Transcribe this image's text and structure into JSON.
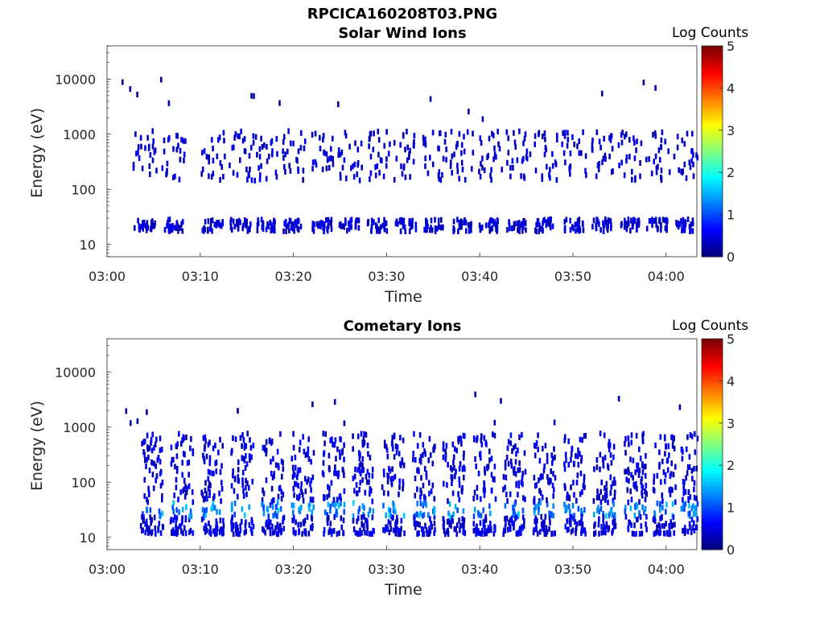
{
  "figure": {
    "title": "RPCICA160208T03.PNG"
  },
  "panels": [
    {
      "id": "solar",
      "title": "Solar Wind Ions",
      "colorbar_label": "Log Counts",
      "colorbar_ticks": [
        "0",
        "1",
        "2",
        "3",
        "4",
        "5"
      ],
      "xlabel": "Time",
      "ylabel": "Energy (eV)",
      "xticks": [
        "03:00",
        "03:10",
        "03:20",
        "03:30",
        "03:40",
        "03:50",
        "04:00"
      ],
      "yticks": [
        "10",
        "100",
        "1000",
        "10000"
      ]
    },
    {
      "id": "cometary",
      "title": "Cometary Ions",
      "colorbar_label": "Log Counts",
      "colorbar_ticks": [
        "0",
        "1",
        "2",
        "3",
        "4",
        "5"
      ],
      "xlabel": "Time",
      "ylabel": "Energy (eV)",
      "xticks": [
        "03:00",
        "03:10",
        "03:20",
        "03:30",
        "03:40",
        "03:50",
        "04:00"
      ],
      "yticks": [
        "10",
        "100",
        "1000",
        "10000"
      ]
    }
  ],
  "chart_data": [
    {
      "type": "heatmap",
      "title": "Solar Wind Ions",
      "xlabel": "Time",
      "ylabel": "Energy (eV)",
      "x_range": [
        "03:00",
        "04:03"
      ],
      "y_range_eV": [
        6,
        40000
      ],
      "y_scale": "log",
      "colorbar": {
        "label": "Log Counts",
        "range": [
          0,
          5
        ],
        "colormap": "jet"
      },
      "description_values": {
        "scan_times_min": [
          3.5,
          6.5,
          10.8,
          13.8,
          16.5,
          19.5,
          22.5,
          25.5,
          28.5,
          31.5,
          34.5,
          37.5,
          40.5,
          43.5,
          46.5,
          49.5,
          52.5,
          55.5,
          58.5,
          61.5
        ],
        "low_band_eV": [
          18,
          30
        ],
        "high_band_eV": [
          150,
          1200
        ],
        "typical_log_counts": 0.3
      }
    },
    {
      "type": "heatmap",
      "title": "Cometary Ions",
      "xlabel": "Time",
      "ylabel": "Energy (eV)",
      "x_range": [
        "03:00",
        "04:03"
      ],
      "y_range_eV": [
        6,
        40000
      ],
      "y_scale": "log",
      "colorbar": {
        "label": "Log Counts",
        "range": [
          0,
          5
        ],
        "colormap": "jet"
      },
      "description_values": {
        "scan_times_min": [
          4.0,
          7.2,
          10.5,
          13.7,
          17.0,
          20.2,
          23.5,
          26.7,
          29.9,
          33.2,
          36.4,
          39.7,
          42.9,
          46.1,
          49.4,
          52.6,
          55.9,
          59.0,
          62.0
        ],
        "band_eV": [
          12,
          800
        ],
        "peak_eV": [
          25,
          45
        ],
        "peak_log_counts": 1.5
      }
    }
  ]
}
